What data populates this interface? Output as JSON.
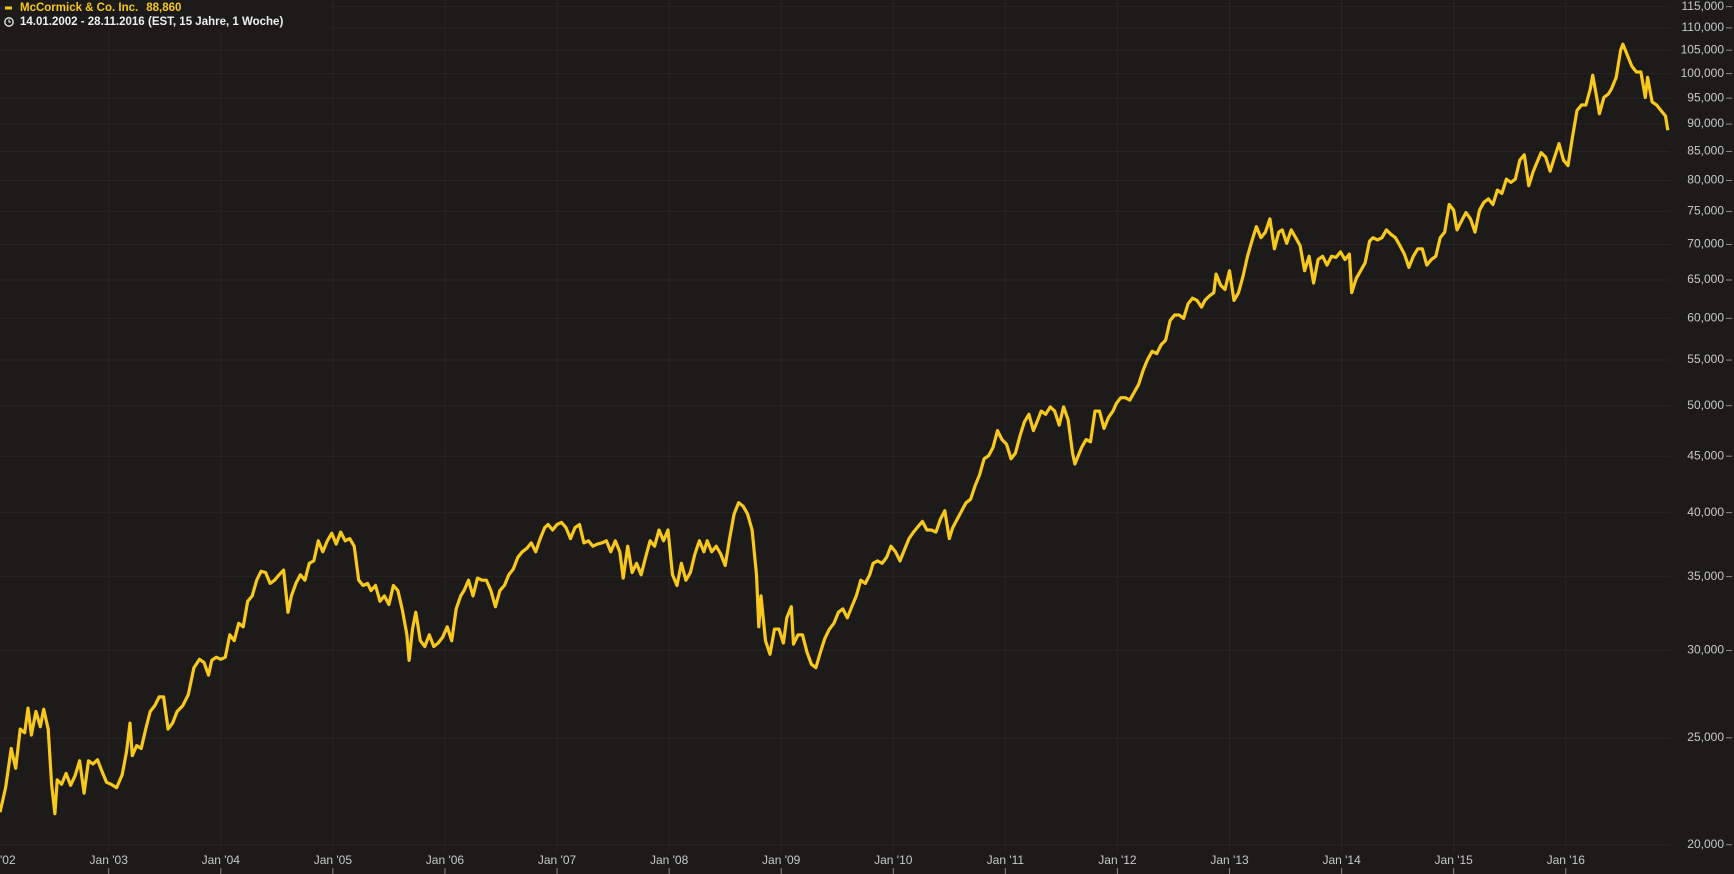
{
  "header": {
    "last": "88,860",
    "range": "14.01.2002 - 28.11.2016",
    "info": "(EST, 15 Jahre, 1 Woche)"
  },
  "chart_data": {
    "type": "line",
    "ylog": true,
    "grid": true,
    "xlim": [
      2002.03,
      2016.93
    ],
    "ylim": [
      19700,
      116600
    ],
    "xticks": [
      {
        "value": 2002,
        "label": "'02"
      },
      {
        "value": 2003,
        "label": "Jan '03"
      },
      {
        "value": 2004,
        "label": "Jan '04"
      },
      {
        "value": 2005,
        "label": "Jan '05"
      },
      {
        "value": 2006,
        "label": "Jan '06"
      },
      {
        "value": 2007,
        "label": "Jan '07"
      },
      {
        "value": 2008,
        "label": "Jan '08"
      },
      {
        "value": 2009,
        "label": "Jan '09"
      },
      {
        "value": 2010,
        "label": "Jan '10"
      },
      {
        "value": 2011,
        "label": "Jan '11"
      },
      {
        "value": 2012,
        "label": "Jan '12"
      },
      {
        "value": 2013,
        "label": "Jan '13"
      },
      {
        "value": 2014,
        "label": "Jan '14"
      },
      {
        "value": 2015,
        "label": "Jan '15"
      },
      {
        "value": 2016,
        "label": "Jan '16"
      }
    ],
    "yticks": [
      {
        "value": 20000,
        "label": "20,000"
      },
      {
        "value": 25000,
        "label": "25,000"
      },
      {
        "value": 30000,
        "label": "30,000"
      },
      {
        "value": 35000,
        "label": "35,000"
      },
      {
        "value": 40000,
        "label": "40,000"
      },
      {
        "value": 45000,
        "label": "45,000"
      },
      {
        "value": 50000,
        "label": "50,000"
      },
      {
        "value": 55000,
        "label": "55,000"
      },
      {
        "value": 60000,
        "label": "60,000"
      },
      {
        "value": 65000,
        "label": "65,000"
      },
      {
        "value": 70000,
        "label": "70,000"
      },
      {
        "value": 75000,
        "label": "75,000"
      },
      {
        "value": 80000,
        "label": "80,000"
      },
      {
        "value": 85000,
        "label": "85,000"
      },
      {
        "value": 90000,
        "label": "90,000"
      },
      {
        "value": 95000,
        "label": "95,000"
      },
      {
        "value": 100000,
        "label": "100,000"
      },
      {
        "value": 105000,
        "label": "105,000"
      },
      {
        "value": 110000,
        "label": "110,000"
      },
      {
        "value": 115000,
        "label": "115,000"
      }
    ],
    "x": [
      2002.03,
      2002.08,
      2002.13,
      2002.17,
      2002.21,
      2002.25,
      2002.28,
      2002.31,
      2002.35,
      2002.39,
      2002.42,
      2002.46,
      2002.49,
      2002.52,
      2002.54,
      2002.58,
      2002.62,
      2002.66,
      2002.7,
      2002.74,
      2002.78,
      2002.82,
      2002.86,
      2002.9,
      2002.94,
      2002.98,
      2003.02,
      2003.07,
      2003.12,
      2003.16,
      2003.19,
      2003.21,
      2003.25,
      2003.29,
      2003.33,
      2003.37,
      2003.41,
      2003.45,
      2003.49,
      2003.53,
      2003.57,
      2003.61,
      2003.66,
      2003.71,
      2003.76,
      2003.81,
      2003.85,
      2003.89,
      2003.92,
      2003.96,
      2004.0,
      2004.04,
      2004.08,
      2004.12,
      2004.16,
      2004.2,
      2004.24,
      2004.28,
      2004.32,
      2004.36,
      2004.4,
      2004.44,
      2004.48,
      2004.52,
      2004.56,
      2004.6,
      2004.63,
      2004.67,
      2004.71,
      2004.75,
      2004.79,
      2004.83,
      2004.87,
      2004.91,
      2004.95,
      2004.99,
      2005.03,
      2005.07,
      2005.11,
      2005.15,
      2005.19,
      2005.23,
      2005.27,
      2005.31,
      2005.34,
      2005.38,
      2005.42,
      2005.46,
      2005.5,
      2005.54,
      2005.58,
      2005.62,
      2005.66,
      2005.68,
      2005.71,
      2005.74,
      2005.78,
      2005.82,
      2005.86,
      2005.9,
      2005.94,
      2005.98,
      2006.02,
      2006.06,
      2006.1,
      2006.14,
      2006.17,
      2006.21,
      2006.25,
      2006.29,
      2006.33,
      2006.37,
      2006.41,
      2006.45,
      2006.49,
      2006.53,
      2006.57,
      2006.61,
      2006.65,
      2006.69,
      2006.73,
      2006.77,
      2006.81,
      2006.85,
      2006.89,
      2006.92,
      2006.96,
      2007.0,
      2007.04,
      2007.08,
      2007.12,
      2007.16,
      2007.2,
      2007.24,
      2007.28,
      2007.32,
      2007.36,
      2007.4,
      2007.44,
      2007.48,
      2007.52,
      2007.56,
      2007.59,
      2007.63,
      2007.67,
      2007.71,
      2007.75,
      2007.79,
      2007.83,
      2007.87,
      2007.91,
      2007.95,
      2007.99,
      2008.03,
      2008.07,
      2008.11,
      2008.15,
      2008.19,
      2008.23,
      2008.27,
      2008.31,
      2008.34,
      2008.38,
      2008.42,
      2008.46,
      2008.5,
      2008.54,
      2008.58,
      2008.62,
      2008.66,
      2008.7,
      2008.74,
      2008.78,
      2008.8,
      2008.82,
      2008.86,
      2008.9,
      2008.94,
      2008.98,
      2009.02,
      2009.05,
      2009.09,
      2009.11,
      2009.15,
      2009.19,
      2009.23,
      2009.27,
      2009.31,
      2009.35,
      2009.39,
      2009.43,
      2009.47,
      2009.51,
      2009.55,
      2009.59,
      2009.63,
      2009.67,
      2009.71,
      2009.75,
      2009.79,
      2009.82,
      2009.86,
      2009.9,
      2009.94,
      2009.98,
      2010.02,
      2010.06,
      2010.1,
      2010.14,
      2010.18,
      2010.22,
      2010.26,
      2010.3,
      2010.34,
      2010.38,
      2010.42,
      2010.46,
      2010.5,
      2010.53,
      2010.57,
      2010.61,
      2010.65,
      2010.69,
      2010.73,
      2010.77,
      2010.81,
      2010.85,
      2010.89,
      2010.93,
      2010.97,
      2011.01,
      2011.05,
      2011.09,
      2011.13,
      2011.17,
      2011.21,
      2011.25,
      2011.29,
      2011.32,
      2011.36,
      2011.4,
      2011.44,
      2011.48,
      2011.52,
      2011.56,
      2011.6,
      2011.62,
      2011.68,
      2011.72,
      2011.76,
      2011.8,
      2011.84,
      2011.88,
      2011.92,
      2011.96,
      2011.99,
      2012.03,
      2012.07,
      2012.11,
      2012.15,
      2012.19,
      2012.23,
      2012.27,
      2012.31,
      2012.35,
      2012.39,
      2012.43,
      2012.47,
      2012.51,
      2012.55,
      2012.59,
      2012.63,
      2012.67,
      2012.71,
      2012.75,
      2012.78,
      2012.82,
      2012.86,
      2012.88,
      2012.92,
      2012.96,
      2013.0,
      2013.04,
      2013.08,
      2013.12,
      2013.16,
      2013.2,
      2013.24,
      2013.28,
      2013.32,
      2013.36,
      2013.4,
      2013.44,
      2013.47,
      2013.51,
      2013.55,
      2013.59,
      2013.63,
      2013.67,
      2013.71,
      2013.75,
      2013.79,
      2013.83,
      2013.87,
      2013.91,
      2013.95,
      2013.99,
      2014.03,
      2014.07,
      2014.09,
      2014.13,
      2014.17,
      2014.21,
      2014.25,
      2014.28,
      2014.32,
      2014.36,
      2014.4,
      2014.44,
      2014.48,
      2014.52,
      2014.56,
      2014.6,
      2014.64,
      2014.68,
      2014.72,
      2014.76,
      2014.8,
      2014.84,
      2014.88,
      2014.92,
      2014.96,
      2015.0,
      2015.03,
      2015.07,
      2015.11,
      2015.15,
      2015.19,
      2015.23,
      2015.27,
      2015.31,
      2015.35,
      2015.39,
      2015.43,
      2015.47,
      2015.51,
      2015.55,
      2015.59,
      2015.63,
      2015.67,
      2015.71,
      2015.74,
      2015.78,
      2015.82,
      2015.86,
      2015.9,
      2015.94,
      2015.98,
      2016.02,
      2016.06,
      2016.1,
      2016.14,
      2016.18,
      2016.22,
      2016.24,
      2016.28,
      2016.3,
      2016.34,
      2016.38,
      2016.41,
      2016.45,
      2016.49,
      2016.51,
      2016.55,
      2016.59,
      2016.63,
      2016.67,
      2016.71,
      2016.73,
      2016.77,
      2016.81,
      2016.85,
      2016.89,
      2016.91
    ],
    "series": [
      {
        "name": "McCormick & Co. Inc.",
        "color": "#f8c81c",
        "values": [
          21400,
          22530,
          24450,
          23460,
          25460,
          25270,
          26600,
          25150,
          26410,
          25590,
          26540,
          25460,
          22690,
          21340,
          22900,
          22690,
          23210,
          22640,
          23100,
          23830,
          22270,
          23830,
          23670,
          23880,
          23310,
          22790,
          22690,
          22530,
          23150,
          24340,
          25780,
          24090,
          24600,
          24450,
          25460,
          26410,
          26730,
          27230,
          27230,
          25460,
          25780,
          26410,
          26730,
          27360,
          28940,
          29450,
          29260,
          28500,
          29390,
          29580,
          29450,
          29580,
          31000,
          30620,
          31750,
          31520,
          33240,
          33620,
          34740,
          35390,
          35300,
          34510,
          34740,
          35130,
          35480,
          32490,
          33620,
          34510,
          35130,
          34740,
          35990,
          36170,
          37720,
          36860,
          37720,
          38320,
          37460,
          38410,
          37720,
          37890,
          37290,
          34740,
          34360,
          34510,
          33990,
          34360,
          33240,
          33620,
          33020,
          34360,
          33990,
          32640,
          31000,
          29390,
          31370,
          32490,
          30620,
          30250,
          31000,
          30250,
          30470,
          30850,
          31520,
          30620,
          32720,
          33620,
          33990,
          34740,
          33620,
          34890,
          34740,
          34740,
          33990,
          32870,
          33990,
          34360,
          35130,
          35560,
          36430,
          36860,
          37120,
          37550,
          36860,
          37890,
          38760,
          39020,
          38580,
          39020,
          39190,
          38760,
          37890,
          38760,
          39020,
          37550,
          37720,
          37290,
          37460,
          37550,
          37720,
          36860,
          37720,
          36860,
          34890,
          37290,
          35300,
          35990,
          35130,
          36430,
          37720,
          37290,
          38580,
          37720,
          38580,
          35130,
          34360,
          35990,
          34740,
          35300,
          36690,
          37720,
          36860,
          37720,
          36860,
          37290,
          36690,
          35820,
          37890,
          39880,
          40840,
          40550,
          39880,
          38580,
          35130,
          31520,
          33620,
          30620,
          29770,
          31370,
          31370,
          30470,
          32120,
          32870,
          30400,
          31000,
          31000,
          29890,
          29140,
          28940,
          29890,
          30770,
          31370,
          31750,
          32490,
          32720,
          32120,
          32870,
          33620,
          34740,
          34510,
          35130,
          35990,
          36170,
          35990,
          36430,
          37290,
          36860,
          36170,
          37030,
          37890,
          38410,
          38840,
          39270,
          38580,
          38580,
          38410,
          39450,
          40160,
          37890,
          38760,
          39450,
          40160,
          40840,
          41130,
          42310,
          43290,
          44760,
          45050,
          45820,
          47470,
          46590,
          46150,
          44760,
          45270,
          46920,
          48340,
          49110,
          47470,
          48560,
          49440,
          49110,
          49880,
          49440,
          48020,
          49880,
          48560,
          45270,
          44270,
          45820,
          46590,
          46370,
          49440,
          49440,
          47690,
          48780,
          49440,
          50230,
          50840,
          50840,
          50590,
          51440,
          52290,
          53860,
          55080,
          56010,
          55740,
          56800,
          57330,
          59720,
          60420,
          60420,
          60000,
          61860,
          62580,
          62290,
          61430,
          62290,
          62870,
          63300,
          65810,
          64310,
          63730,
          66270,
          62290,
          63300,
          65500,
          68300,
          70500,
          72670,
          71000,
          71840,
          73840,
          69380,
          71840,
          72170,
          70170,
          72170,
          71000,
          69840,
          66270,
          68300,
          64600,
          67830,
          68300,
          67050,
          68300,
          68140,
          68920,
          67830,
          68610,
          63300,
          65190,
          66270,
          67360,
          70500,
          71000,
          70670,
          71000,
          72170,
          71500,
          71000,
          69840,
          68610,
          66740,
          68300,
          69380,
          69380,
          67050,
          67830,
          68300,
          71000,
          71840,
          76090,
          75200,
          72170,
          73510,
          74840,
          73840,
          71840,
          75200,
          76450,
          76990,
          76090,
          78420,
          77880,
          80230,
          79680,
          80230,
          83460,
          84410,
          79140,
          81570,
          82900,
          84790,
          84030,
          81570,
          84030,
          86390,
          83460,
          82520,
          87630,
          92590,
          93660,
          93660,
          96960,
          99660,
          94720,
          91950,
          95160,
          95830,
          96960,
          99210,
          105070,
          106320,
          103890,
          101530,
          100340,
          100340,
          95130,
          99210,
          94270,
          93660,
          92590,
          91520,
          88860
        ]
      }
    ]
  }
}
